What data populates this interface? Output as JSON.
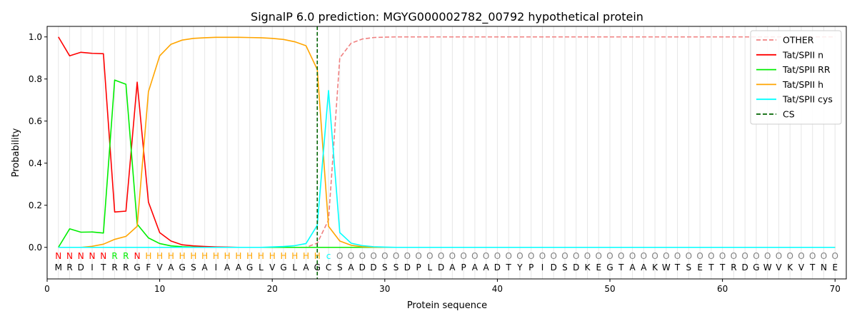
{
  "chart_data": {
    "type": "line",
    "title": "SignalP 6.0 prediction: MGYG000002782_00792 hypothetical protein",
    "xlabel": "Protein sequence",
    "ylabel": "Probability",
    "xlim": [
      0,
      71
    ],
    "ylim": [
      -0.15,
      1.05
    ],
    "xticks": [
      0,
      10,
      20,
      30,
      40,
      50,
      60,
      70
    ],
    "yticks": [
      0.0,
      0.2,
      0.4,
      0.6,
      0.8,
      1.0
    ],
    "xtick_labels": [
      "0",
      "10",
      "20",
      "30",
      "40",
      "50",
      "60",
      "70"
    ],
    "ytick_labels": [
      "0.0",
      "0.2",
      "0.4",
      "0.6",
      "0.8",
      "1.0"
    ],
    "grid": "vertical lines at every residue",
    "legend_position": "top-right",
    "sequence": "MRDITRRGFVAGSAIAAGLVGLAGCSADDSSDPLDAPAADTYPIDSDKEGTAAKWTSETTRDGWVKVTNE",
    "labels": "NNNNNRRNHHHHHHHHHHHHHHHHcOOOOOOOOOOOOOOOOOOOOOOOOOOOOOOOOOOOOOOOOOOOOOO",
    "label_colors": {
      "N": "#ff0000",
      "R": "#00ee00",
      "H": "#ffa500",
      "c": "#00ffff",
      "O": "#808080"
    },
    "cs_position": 24,
    "cs_color": "#006400",
    "series": [
      {
        "name": "OTHER",
        "color": "#f08080",
        "dash": true,
        "values": [
          0,
          0,
          0,
          0,
          0,
          0,
          0,
          0,
          0,
          0,
          0,
          0,
          0,
          0,
          0,
          0,
          0,
          0,
          0,
          0,
          0,
          0,
          0,
          0.02,
          0.13,
          0.9,
          0.97,
          0.99,
          0.997,
          0.999,
          1,
          1,
          1,
          1,
          1,
          1,
          1,
          1,
          1,
          1,
          1,
          1,
          1,
          1,
          1,
          1,
          1,
          1,
          1,
          1,
          1,
          1,
          1,
          1,
          1,
          1,
          1,
          1,
          1,
          1,
          1,
          1,
          1,
          1,
          1,
          1,
          1,
          1,
          1,
          1
        ]
      },
      {
        "name": "Tat/SPII n",
        "color": "#ff0000",
        "dash": false,
        "values": [
          1.0,
          0.91,
          0.927,
          0.922,
          0.92,
          0.168,
          0.172,
          0.785,
          0.215,
          0.07,
          0.03,
          0.012,
          0.007,
          0.004,
          0.002,
          0.001,
          0,
          0,
          0,
          0,
          0,
          0,
          0,
          0,
          0,
          0,
          0,
          0,
          0,
          0,
          0,
          0,
          0,
          0,
          0,
          0,
          0,
          0,
          0,
          0,
          0,
          0,
          0,
          0,
          0,
          0,
          0,
          0,
          0,
          0,
          0,
          0,
          0,
          0,
          0,
          0,
          0,
          0,
          0,
          0,
          0,
          0,
          0,
          0,
          0,
          0,
          0,
          0,
          0,
          0
        ]
      },
      {
        "name": "Tat/SPII RR",
        "color": "#00ee00",
        "dash": false,
        "values": [
          0,
          0.088,
          0.072,
          0.073,
          0.068,
          0.795,
          0.775,
          0.11,
          0.045,
          0.018,
          0.007,
          0.003,
          0.001,
          0,
          0,
          0,
          0,
          0,
          0,
          0,
          0,
          0,
          0,
          0,
          0,
          0,
          0,
          0,
          0,
          0,
          0,
          0,
          0,
          0,
          0,
          0,
          0,
          0,
          0,
          0,
          0,
          0,
          0,
          0,
          0,
          0,
          0,
          0,
          0,
          0,
          0,
          0,
          0,
          0,
          0,
          0,
          0,
          0,
          0,
          0,
          0,
          0,
          0,
          0,
          0,
          0,
          0,
          0,
          0,
          0
        ]
      },
      {
        "name": "Tat/SPII h",
        "color": "#ffa500",
        "dash": false,
        "values": [
          0,
          0,
          0,
          0.005,
          0.015,
          0.038,
          0.052,
          0.1,
          0.74,
          0.91,
          0.965,
          0.985,
          0.993,
          0.996,
          0.998,
          0.998,
          0.998,
          0.997,
          0.996,
          0.993,
          0.988,
          0.977,
          0.958,
          0.845,
          0.1,
          0.03,
          0.01,
          0.003,
          0.001,
          0,
          0,
          0,
          0,
          0,
          0,
          0,
          0,
          0,
          0,
          0,
          0,
          0,
          0,
          0,
          0,
          0,
          0,
          0,
          0,
          0,
          0,
          0,
          0,
          0,
          0,
          0,
          0,
          0,
          0,
          0,
          0,
          0,
          0,
          0,
          0,
          0,
          0,
          0,
          0,
          0
        ]
      },
      {
        "name": "Tat/SPII cys",
        "color": "#00ffff",
        "dash": false,
        "values": [
          0,
          0,
          0,
          0,
          0,
          0,
          0,
          0,
          0,
          0,
          0,
          0,
          0,
          0,
          0,
          0,
          0,
          0,
          0,
          0.002,
          0.004,
          0.008,
          0.018,
          0.105,
          0.745,
          0.07,
          0.02,
          0.008,
          0.003,
          0.001,
          0,
          0,
          0,
          0,
          0,
          0,
          0,
          0,
          0,
          0,
          0,
          0,
          0,
          0,
          0,
          0,
          0,
          0,
          0,
          0,
          0,
          0,
          0,
          0,
          0,
          0,
          0,
          0,
          0,
          0,
          0,
          0,
          0,
          0,
          0,
          0,
          0,
          0,
          0,
          0
        ]
      }
    ],
    "legend": [
      "OTHER",
      "Tat/SPII n",
      "Tat/SPII RR",
      "Tat/SPII h",
      "Tat/SPII cys",
      "CS"
    ]
  }
}
